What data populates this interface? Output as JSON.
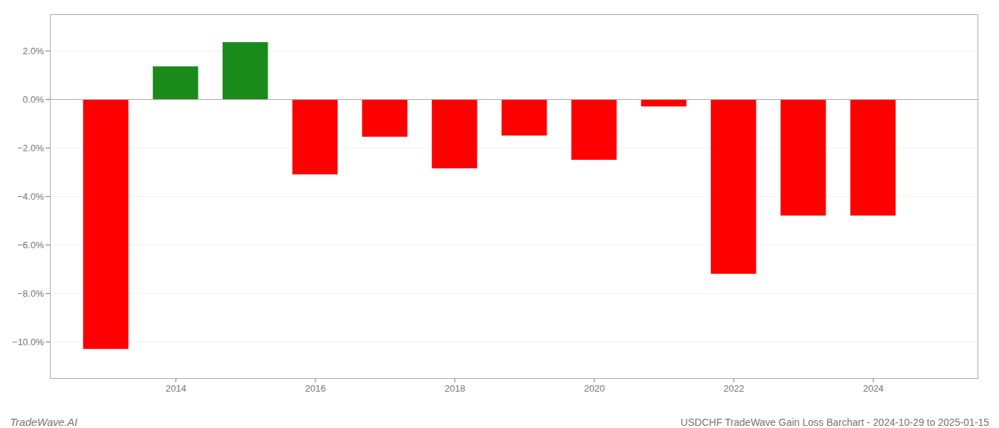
{
  "chart_data": {
    "type": "bar",
    "title": "USDCHF TradeWave Gain Loss Barchart - 2024-10-29 to 2025-01-15",
    "annotations": [
      "TradeWave.AI"
    ],
    "x": [
      2013,
      2014,
      2015,
      2016,
      2017,
      2018,
      2019,
      2020,
      2021,
      2022,
      2023,
      2024
    ],
    "values": [
      -10.3,
      1.35,
      2.35,
      -3.1,
      -1.55,
      -2.85,
      -1.5,
      -2.5,
      -0.3,
      -7.2,
      -4.8,
      -4.8
    ],
    "colors": [
      "#ff0000",
      "#1a8a1a",
      "#1a8a1a",
      "#ff0000",
      "#ff0000",
      "#ff0000",
      "#ff0000",
      "#ff0000",
      "#ff0000",
      "#ff0000",
      "#ff0000",
      "#ff0000"
    ],
    "xlim": [
      2012.2,
      2025.5
    ],
    "xticks": [
      2014,
      2016,
      2018,
      2020,
      2022,
      2024
    ],
    "ylim": [
      -11.5,
      3.5
    ],
    "yticks": [
      {
        "value": -10.0,
        "label": "−10.0%"
      },
      {
        "value": -8.0,
        "label": "−8.0%"
      },
      {
        "value": -6.0,
        "label": "−6.0%"
      },
      {
        "value": -4.0,
        "label": "−4.0%"
      },
      {
        "value": -2.0,
        "label": "−2.0%"
      },
      {
        "value": 0.0,
        "label": "0.0%"
      },
      {
        "value": 2.0,
        "label": "2.0%"
      }
    ],
    "grid": true
  }
}
